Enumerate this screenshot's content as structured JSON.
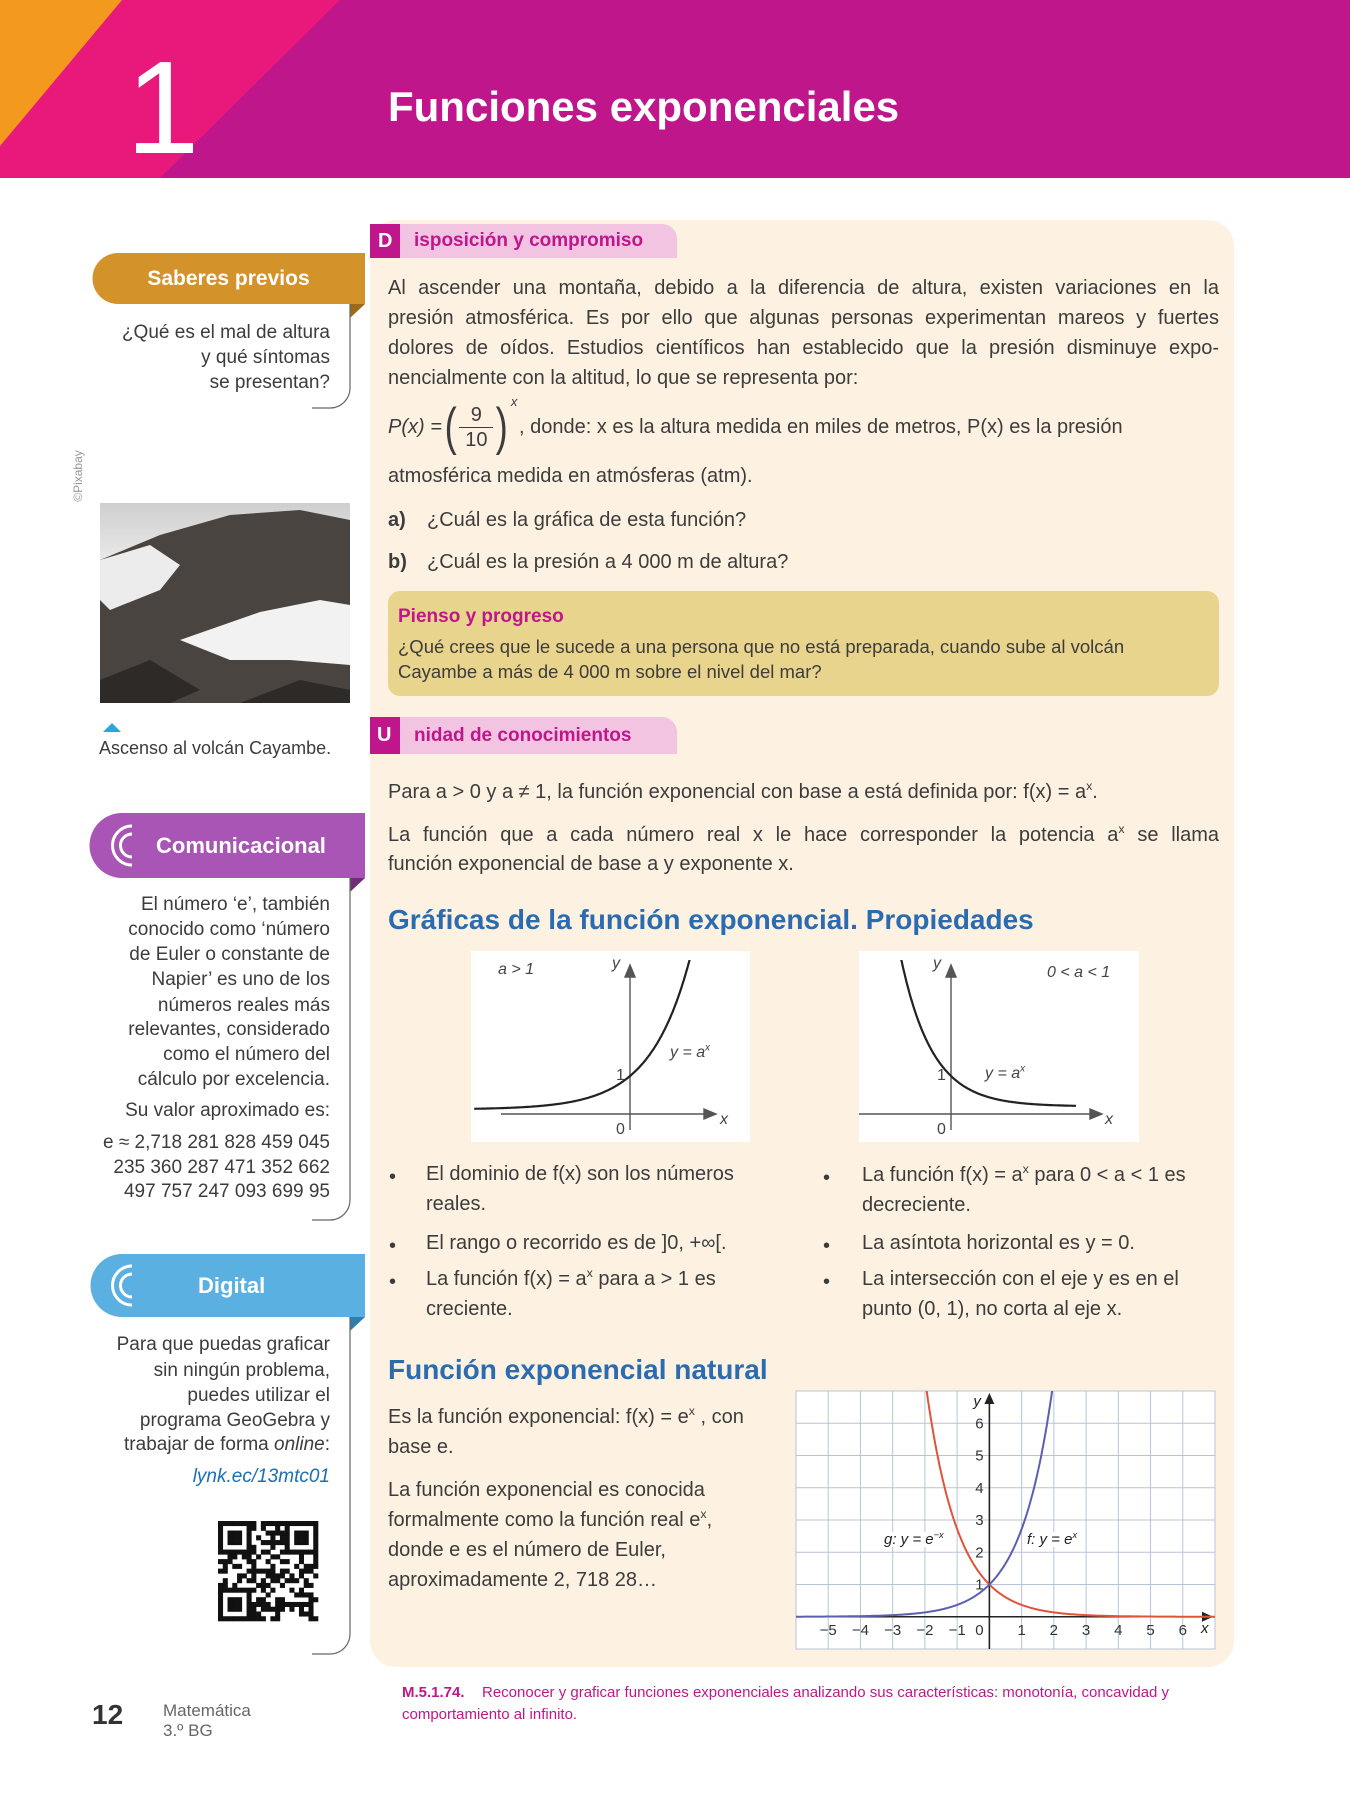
{
  "header": {
    "chapter": "1",
    "title": "Funciones exponenciales"
  },
  "sidebar": {
    "saberes": {
      "title": "Saberes previos",
      "question_lines": [
        "¿Qué es el mal de altura",
        "y qué síntomas",
        "se presentan?"
      ]
    },
    "photo": {
      "credit": "©Pixabay",
      "caption": "Ascenso al volcán Cayambe."
    },
    "comunicacional": {
      "title": "Comunicacional",
      "lines": [
        "El número ‘e’, también",
        "conocido como ‘número",
        "de Euler o constante de",
        "Napier’ es uno de los",
        "números reales más",
        "relevantes, considerado",
        "como el número del",
        "cálculo por excelencia."
      ],
      "approx_intro": "Su valor aproximado es:",
      "approx_lines": [
        "e ≈ 2,718 281 828 459 045",
        "235 360 287 471 352 662",
        "497 757 247 093 699 95"
      ]
    },
    "digital": {
      "title": "Digital",
      "lines": [
        "Para que puedas graficar",
        "sin ningún problema,",
        "puedes utilizar el",
        "programa GeoGebra y",
        {
          "before": "trabajar de forma ",
          "italic": "online",
          "after": ":"
        }
      ],
      "link": "lynk.ec/13mtc01"
    }
  },
  "disposicion": {
    "letter": "D",
    "title": "isposición y compromiso",
    "lines": [
      "Al ascender una montaña, debido a la diferencia de altura, existen variaciones en la",
      "presión atmosférica. Es por ello que algunas personas experimentan mareos y fuertes",
      "dolores de oídos. Estudios científicos han establecido que la presión disminuye expo-",
      "nencialmente con la altitud, lo que se representa por:"
    ],
    "formula": {
      "lhs": "P(x) =",
      "num": "9",
      "den": "10",
      "exp": "x"
    },
    "formula_text": ", donde: x es la altura medida en miles de metros, P(x) es la presión",
    "formula_text2": "atmosférica medida en atmósferas (atm).",
    "questions": [
      {
        "label": "a)",
        "text": "¿Cuál es la gráfica de esta función?"
      },
      {
        "label": "b)",
        "text": "¿Cuál es la presión a 4 000 m de altura?"
      }
    ],
    "pienso": {
      "title": "Pienso y progreso",
      "lines": [
        "¿Qué crees que le sucede a una persona que no está preparada, cuando sube al volcán",
        "Cayambe a más de 4 000 m sobre el nivel del mar?"
      ]
    }
  },
  "unidad": {
    "letter": "U",
    "title": "nidad de conocimientos",
    "definition": {
      "before": "Para a > 0 y a ≠ 1, la función exponencial con base a está definida por: f(x) = a",
      "sup": "x",
      "after": "."
    },
    "para2_line1": {
      "before": "La función que a cada número real x le hace corresponder la potencia a",
      "sup": "x",
      "after": " se llama"
    },
    "para2_line2": "función exponencial de base a y exponente x."
  },
  "graficas": {
    "heading": "Gráficas de la función exponencial. Propiedades",
    "graph_growth": {
      "case": "a > 1",
      "y_axis": "y",
      "x_axis": "x",
      "one": "1",
      "zero": "0",
      "curve": {
        "before": "y = a",
        "sup": "x"
      }
    },
    "graph_decay": {
      "case": "0 < a < 1",
      "y_axis": "y",
      "x_axis": "x",
      "one": "1",
      "zero": "0",
      "curve": {
        "before": "y = a",
        "sup": "x"
      }
    },
    "bullets_left": [
      "El dominio de f(x) son los números reales.",
      "El rango o recorrido es de ]0, +∞[.",
      {
        "before": "La función f(x) = a",
        "sup": "x",
        "after": " para a > 1 es creciente."
      }
    ],
    "bullets_right": [
      {
        "before": "La función f(x) = a",
        "sup": "x",
        "after": " para 0 < a < 1 es decreciente."
      },
      "La asíntota horizontal es y = 0.",
      "La intersección con el eje y es en el punto (0, 1), no corta al eje x."
    ]
  },
  "natural": {
    "heading": "Función exponencial natural",
    "p1": {
      "before": "Es la función exponencial: f(x) = e",
      "sup": "x",
      "after": " , con base e."
    },
    "p2": {
      "before": "La función exponencial es conocida formalmente como la función real e",
      "sup": "x",
      "after": ", donde e es el número de Euler, aproximadamente 2, 718 28…"
    },
    "graph": {
      "xlim": [
        -6,
        7
      ],
      "ylim": [
        -1,
        7
      ],
      "grid": true,
      "xticks": [
        {
          "value": -5,
          "label": "−5"
        },
        {
          "value": -4,
          "label": "−4"
        },
        {
          "value": -3,
          "label": "−3"
        },
        {
          "value": -2,
          "label": "−2"
        },
        {
          "value": -1,
          "label": "−1"
        },
        0,
        1,
        2,
        3,
        4,
        5,
        6
      ],
      "yticks": [
        1,
        2,
        3,
        4,
        5,
        6
      ],
      "x_axis": "x",
      "y_axis": "y",
      "label_g": {
        "before": "g: y = e",
        "sup": "−x"
      },
      "label_f": {
        "before": "f: y = e",
        "sup": "x"
      }
    }
  },
  "footer": {
    "code": "M.5.1.74.",
    "text_lines": [
      "Reconocer y graficar funciones exponenciales analizando sus características: monotonía, concavidad y",
      "comportamiento al infinito."
    ],
    "page": "12",
    "subject": "Matemática",
    "grade": "3.º BG"
  }
}
